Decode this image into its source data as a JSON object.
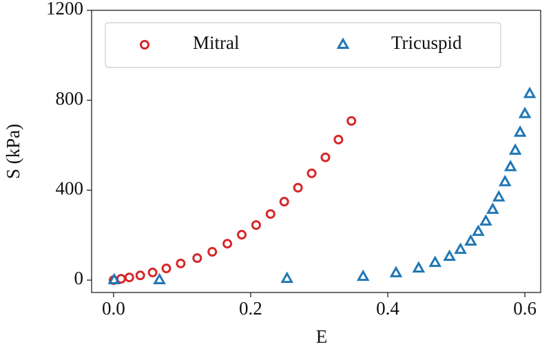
{
  "chart_data": {
    "type": "scatter",
    "xlabel": "E",
    "ylabel": "S (kPa)",
    "xlim": [
      -0.032,
      0.623
    ],
    "ylim": [
      -55,
      1200
    ],
    "xticks": [
      {
        "value": 0,
        "label": "0.0"
      },
      0.2,
      0.4,
      0.6
    ],
    "yticks": [
      0,
      400,
      800,
      1200
    ],
    "legend": "top",
    "series": [
      {
        "name": "Mitral",
        "color": "#d62728",
        "marker": "circle",
        "x": [
          0,
          0.011,
          0.023,
          0.039,
          0.057,
          0.077,
          0.098,
          0.122,
          0.144,
          0.166,
          0.187,
          0.208,
          0.229,
          0.249,
          0.269,
          0.289,
          0.309,
          0.328,
          0.347
        ],
        "values": [
          0,
          6,
          12,
          21,
          34,
          52,
          74,
          98,
          126,
          162,
          202,
          245,
          294,
          349,
          411,
          475,
          546,
          625,
          708
        ]
      },
      {
        "name": "Tricuspid",
        "color": "#1f77b4",
        "marker": "triangle",
        "x": [
          0.001,
          0.067,
          0.253,
          0.364,
          0.412,
          0.445,
          0.469,
          0.49,
          0.506,
          0.521,
          0.532,
          0.543,
          0.553,
          0.562,
          0.571,
          0.579,
          0.586,
          0.593,
          0.6,
          0.607
        ],
        "values": [
          0,
          0,
          6,
          15,
          31,
          52,
          77,
          104,
          135,
          172,
          215,
          261,
          313,
          368,
          436,
          503,
          576,
          656,
          739,
          828
        ]
      }
    ]
  }
}
